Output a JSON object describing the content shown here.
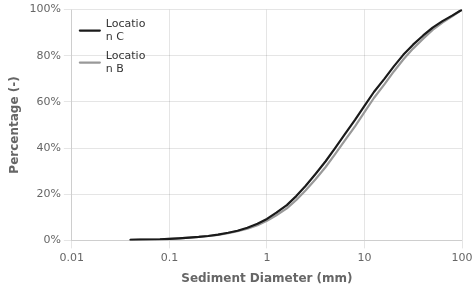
{
  "chart_data": {
    "type": "line",
    "title": "",
    "x_label": "Sediment Diameter (mm)",
    "y_label": "Percentage (-)",
    "log": "x",
    "xlim": [
      0.01,
      100
    ],
    "ylim": [
      0.0,
      1.0
    ],
    "xticks": [
      0.01,
      0.1,
      1,
      10,
      100
    ],
    "yticks": [
      {
        "value": 0.0,
        "label": "0%"
      },
      {
        "value": 0.2,
        "label": "20%"
      },
      {
        "value": 0.4,
        "label": "40%"
      },
      {
        "value": 0.6,
        "label": "60%"
      },
      {
        "value": 0.8,
        "label": "80%"
      },
      {
        "value": 1.0,
        "label": "100%"
      }
    ],
    "grid": true,
    "legend": "upper left",
    "series": [
      {
        "name": "Locatio\nn C",
        "color": "#1a1a1a",
        "x": [
          0.04,
          0.05,
          0.063,
          0.08,
          0.1,
          0.125,
          0.16,
          0.2,
          0.25,
          0.315,
          0.4,
          0.5,
          0.63,
          0.8,
          1.0,
          1.25,
          1.6,
          2.0,
          2.5,
          3.15,
          4.0,
          5.0,
          6.3,
          8.0,
          10.0,
          12.5,
          16.0,
          20.0,
          25.0,
          31.5,
          40.0,
          50.0,
          63.0,
          80.0,
          100.0
        ],
        "values": [
          0.002,
          0.003,
          0.004,
          0.005,
          0.007,
          0.009,
          0.012,
          0.015,
          0.019,
          0.025,
          0.033,
          0.042,
          0.055,
          0.072,
          0.093,
          0.12,
          0.153,
          0.192,
          0.237,
          0.288,
          0.343,
          0.4,
          0.46,
          0.522,
          0.583,
          0.643,
          0.7,
          0.754,
          0.804,
          0.848,
          0.888,
          0.922,
          0.95,
          0.975,
          1.0
        ]
      },
      {
        "name": "Locatio\nn B",
        "color": "#999999",
        "x": [
          0.04,
          0.05,
          0.063,
          0.08,
          0.1,
          0.125,
          0.16,
          0.2,
          0.25,
          0.315,
          0.4,
          0.5,
          0.63,
          0.8,
          1.0,
          1.25,
          1.6,
          2.0,
          2.5,
          3.15,
          4.0,
          5.0,
          6.3,
          8.0,
          10.0,
          12.5,
          16.0,
          20.0,
          25.0,
          31.5,
          40.0,
          50.0,
          63.0,
          80.0,
          100.0
        ],
        "values": [
          0.002,
          0.003,
          0.004,
          0.005,
          0.007,
          0.009,
          0.012,
          0.015,
          0.019,
          0.024,
          0.031,
          0.04,
          0.051,
          0.066,
          0.085,
          0.109,
          0.139,
          0.175,
          0.217,
          0.265,
          0.318,
          0.374,
          0.433,
          0.494,
          0.556,
          0.617,
          0.676,
          0.732,
          0.784,
          0.831,
          0.874,
          0.912,
          0.944,
          0.972,
          1.0
        ]
      }
    ]
  }
}
